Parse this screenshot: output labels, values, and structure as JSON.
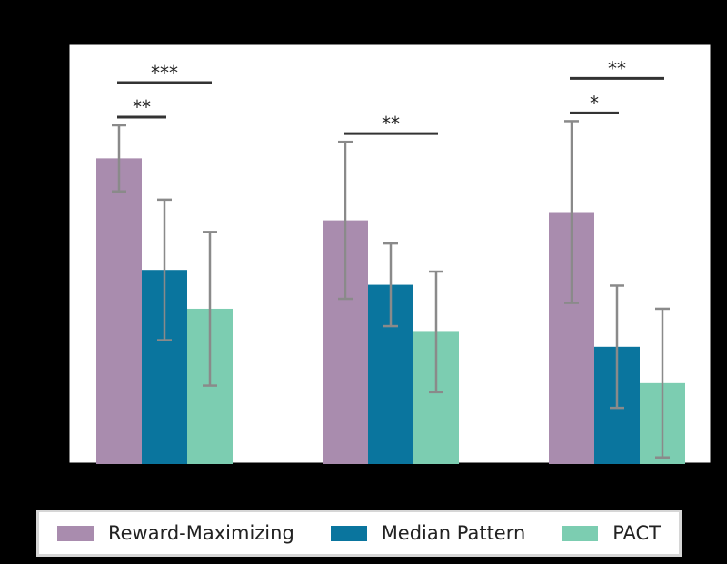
{
  "chart_data": {
    "type": "bar",
    "categories": [
      "",
      "",
      ""
    ],
    "ylim": [
      0,
      5.1
    ],
    "grid": false,
    "legend_placement": "bottom",
    "series": [
      {
        "name": "Reward-Maximizing",
        "color": "#a98cae",
        "values": [
          3.7,
          2.95,
          3.05
        ],
        "errors": [
          0.4,
          0.95,
          1.1
        ]
      },
      {
        "name": "Median Pattern",
        "color": "#0a759e",
        "values": [
          2.35,
          2.17,
          1.42
        ],
        "errors": [
          0.85,
          0.5,
          0.74
        ]
      },
      {
        "name": "PACT",
        "color": "#7ccdb1",
        "values": [
          1.88,
          1.6,
          0.98
        ],
        "errors": [
          0.93,
          0.73,
          0.9
        ]
      }
    ],
    "significance": [
      {
        "group": 0,
        "from": 0,
        "to": 1,
        "label": "**"
      },
      {
        "group": 0,
        "from": 0,
        "to": 2,
        "label": "***"
      },
      {
        "group": 1,
        "from": 0,
        "to": 2,
        "label": "**"
      },
      {
        "group": 2,
        "from": 0,
        "to": 1,
        "label": "*"
      },
      {
        "group": 2,
        "from": 0,
        "to": 2,
        "label": "**"
      }
    ]
  },
  "legend": {
    "items": [
      {
        "label": "Reward-Maximizing",
        "color": "#a98cae"
      },
      {
        "label": "Median Pattern",
        "color": "#0a759e"
      },
      {
        "label": "PACT",
        "color": "#7ccdb1"
      }
    ]
  }
}
